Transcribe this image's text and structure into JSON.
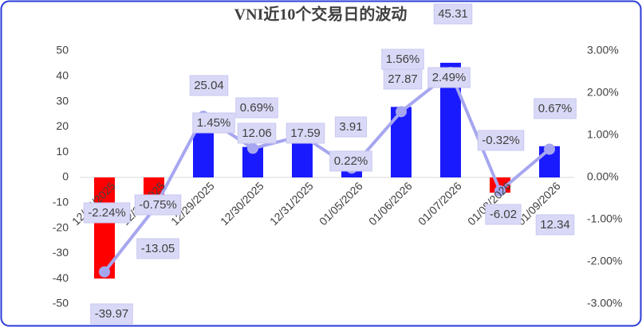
{
  "chart_data": {
    "type": "bar-line",
    "title": "VNI近10个交易日的波动",
    "categories": [
      "12/25/2025",
      "12/26/2025",
      "12/29/2025",
      "12/30/2025",
      "12/31/2025",
      "01/05/2026",
      "01/06/2026",
      "01/07/2026",
      "01/08/2026",
      "01/09/2026"
    ],
    "series": [
      {
        "type": "bar",
        "colors": [
          "#ff0000",
          "#ff0000",
          "#1a1aff",
          "#1a1aff",
          "#1a1aff",
          "#1a1aff",
          "#1a1aff",
          "#1a1aff",
          "#ff0000",
          "#1a1aff"
        ],
        "values": [
          -39.97,
          -13.05,
          25.04,
          12.06,
          17.59,
          3.91,
          27.87,
          45.31,
          -6.02,
          12.34
        ]
      },
      {
        "type": "line",
        "axis": "y2",
        "color": "#a6a6f0",
        "values": [
          -2.24,
          -0.75,
          1.45,
          0.69,
          0.99,
          0.22,
          1.56,
          2.49,
          -0.32,
          0.67
        ],
        "value_labels": [
          "-2.24%",
          "-0.75%",
          "1.45%",
          "0.69%",
          null,
          "0.22%",
          "1.56%",
          "2.49%",
          "-0.32%",
          "0.67%"
        ]
      }
    ],
    "ylim": [
      -50,
      50
    ],
    "yticks": [
      -50,
      -40,
      -30,
      -20,
      -10,
      0,
      10,
      20,
      30,
      40,
      50
    ],
    "y2lim": [
      -3,
      3
    ],
    "y2ticks": [
      {
        "value": -3,
        "label": "-3.00%"
      },
      {
        "value": -2,
        "label": "-2.00%"
      },
      {
        "value": -1,
        "label": "-1.00%"
      },
      {
        "value": 0,
        "label": "0.00%"
      },
      {
        "value": 1,
        "label": "1.00%"
      },
      {
        "value": 2,
        "label": "2.00%"
      },
      {
        "value": 3,
        "label": "3.00%"
      }
    ]
  }
}
